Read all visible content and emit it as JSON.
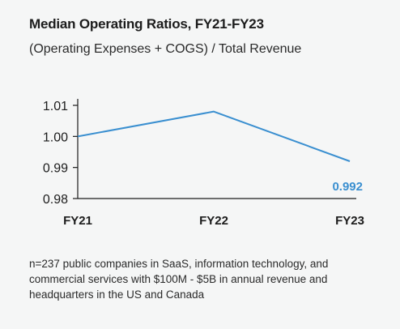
{
  "title": "Median Operating Ratios, FY21-FY23",
  "subtitle": "(Operating Expenses + COGS) / Total Revenue",
  "note": "n=237 public companies in SaaS, information technology, and commercial services with $100M - $5B in annual revenue and headquarters in the US and Canada",
  "colors": {
    "line": "#3a8fd0",
    "axis": "#1c1c1c",
    "label": "#3a8fd0"
  },
  "chart_data": {
    "type": "line",
    "categories": [
      "FY21",
      "FY22",
      "FY23"
    ],
    "values": [
      1.0,
      1.008,
      0.992
    ],
    "ylim": [
      0.98,
      1.01
    ],
    "yticks": [
      "0.98",
      "0.99",
      "1.00",
      "1.01"
    ],
    "data_labels": [
      null,
      null,
      "0.992"
    ],
    "title": "Median Operating Ratios, FY21-FY23",
    "subtitle": "(Operating Expenses + COGS) / Total Revenue",
    "xlabel": "",
    "ylabel": "",
    "grid": false,
    "legend": "none"
  }
}
